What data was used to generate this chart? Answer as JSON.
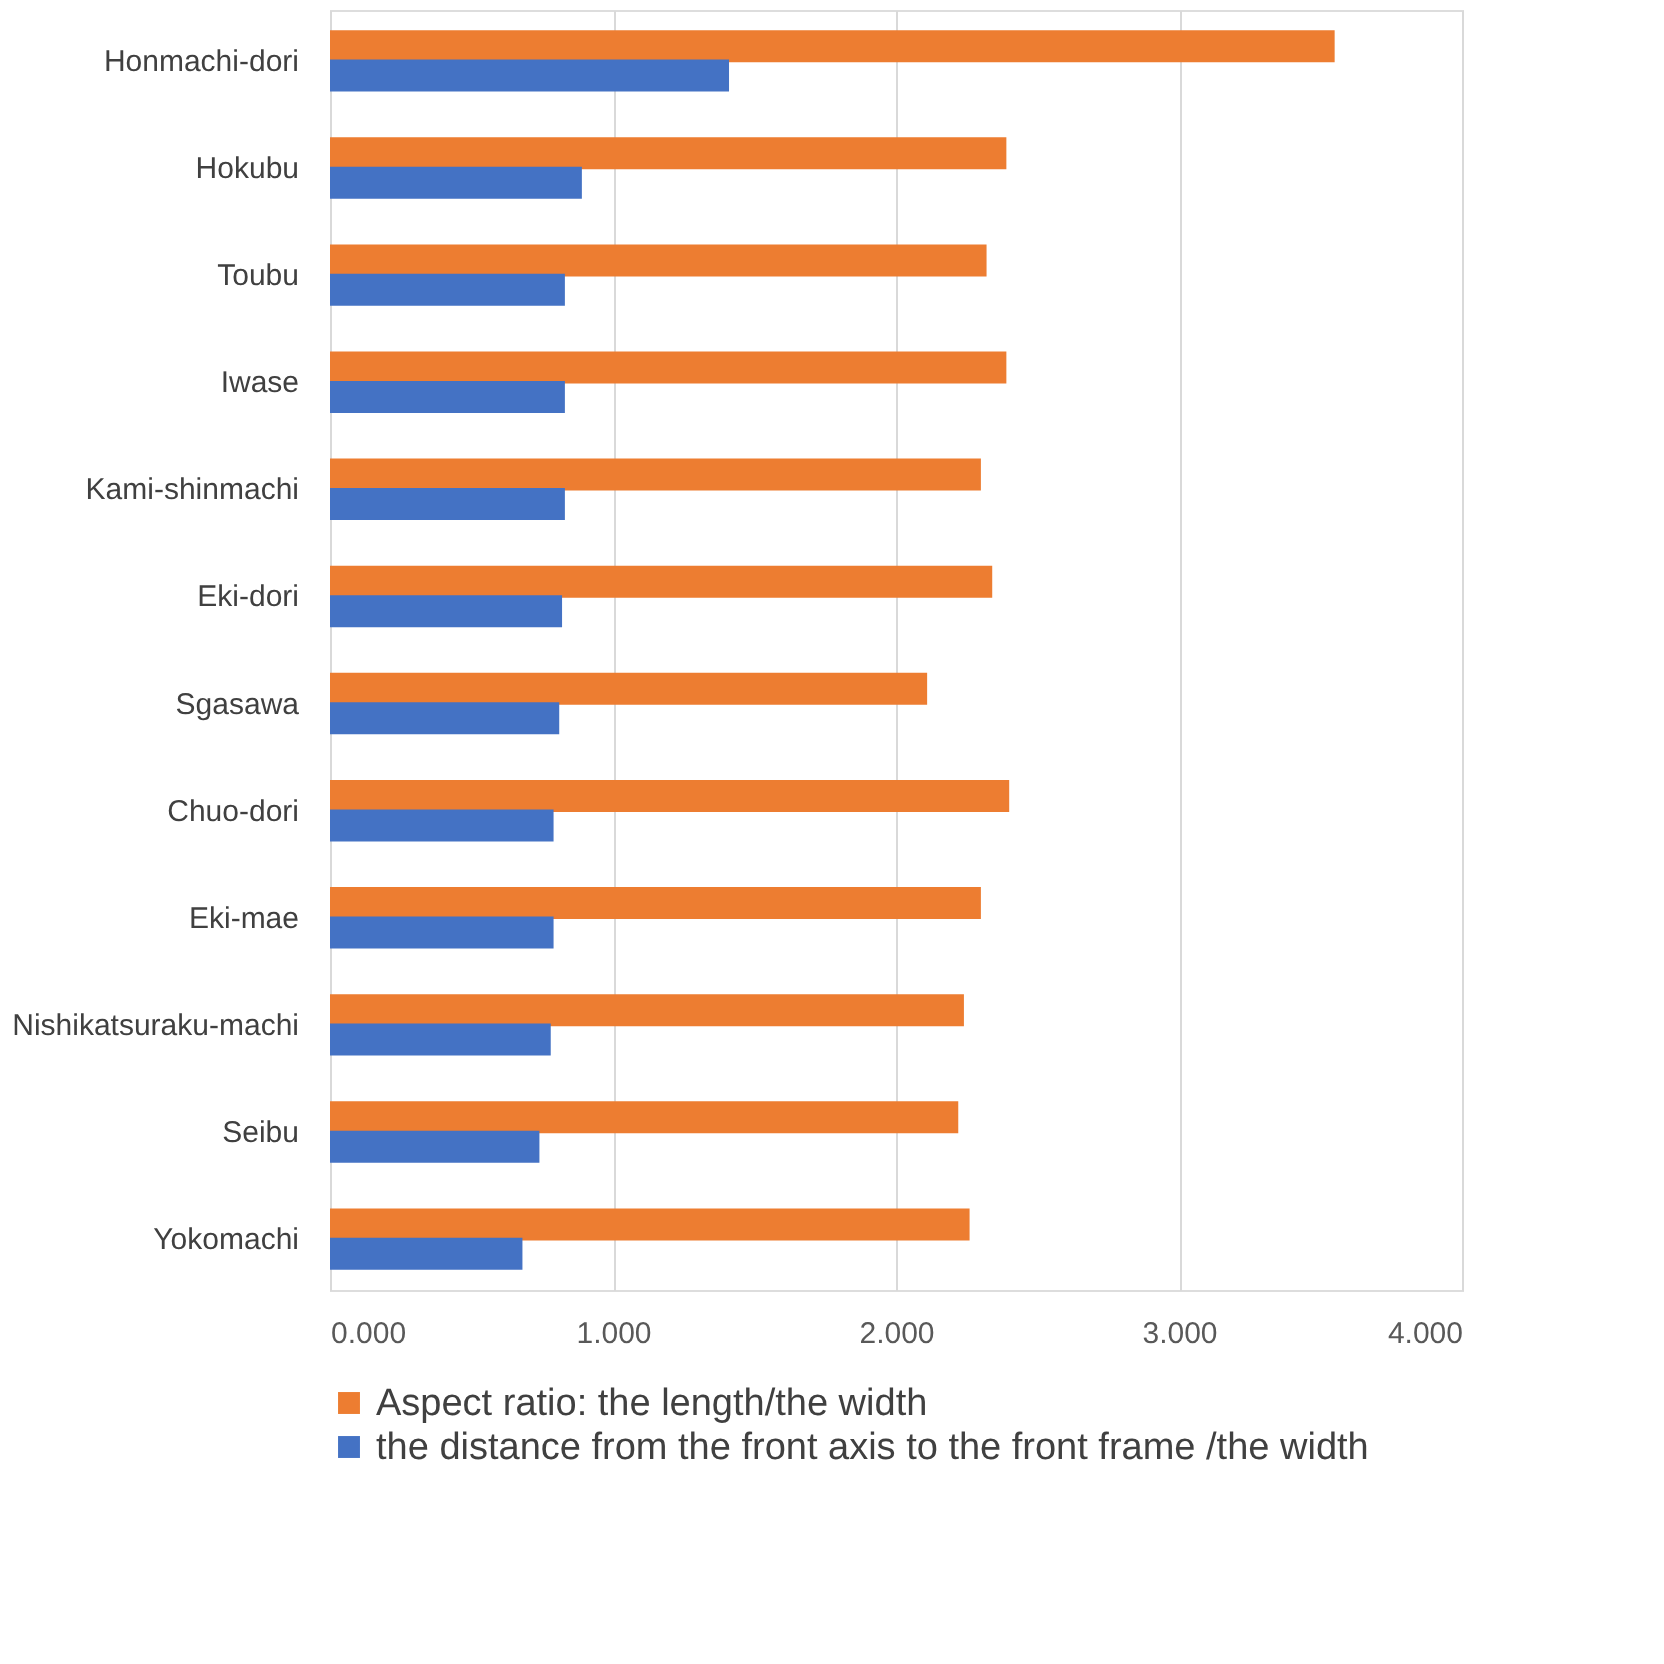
{
  "chart_data": {
    "type": "bar",
    "orientation": "horizontal",
    "categories": [
      "Honmachi-dori",
      "Hokubu",
      "Toubu",
      "Iwase",
      "Kami-shinmachi",
      "Eki-dori",
      "Sgasawa",
      "Chuo-dori",
      "Eki-mae",
      "Nishikatsuraku-machi",
      "Seibu",
      "Yokomachi"
    ],
    "series": [
      {
        "name": "Aspect ratio: the length/the width",
        "color": "#ed7d31",
        "values": [
          3.55,
          2.39,
          2.32,
          2.39,
          2.3,
          2.34,
          2.11,
          2.4,
          2.3,
          2.24,
          2.22,
          2.26
        ]
      },
      {
        "name": "the distance from the front axis to the front frame /the width",
        "color": "#4472c4",
        "values": [
          1.41,
          0.89,
          0.83,
          0.83,
          0.83,
          0.82,
          0.81,
          0.79,
          0.79,
          0.78,
          0.74,
          0.68
        ]
      }
    ],
    "xlim": [
      0,
      4
    ],
    "xticks": [
      {
        "value": 0,
        "label": "0.000"
      },
      {
        "value": 1,
        "label": "1.000"
      },
      {
        "value": 2,
        "label": "2.000"
      },
      {
        "value": 3,
        "label": "3.000"
      },
      {
        "value": 4,
        "label": "4.000"
      }
    ],
    "grid": "x",
    "legend": "bottom"
  }
}
